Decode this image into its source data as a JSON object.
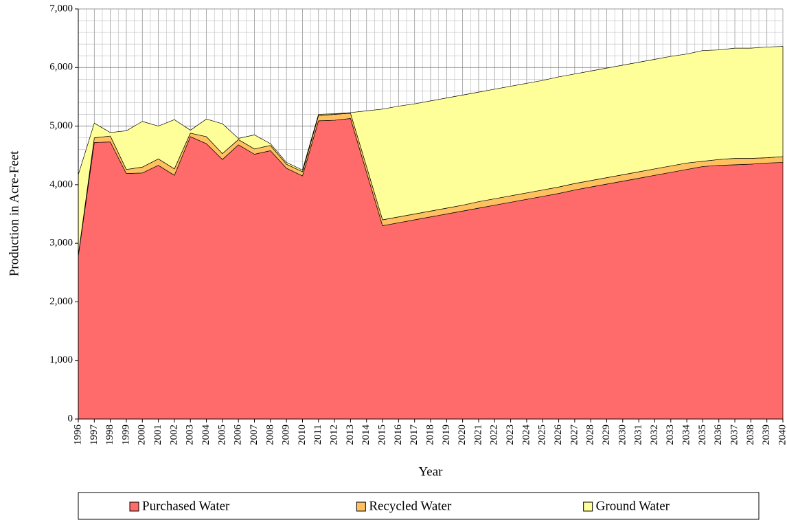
{
  "chart_data": {
    "type": "stacked_area",
    "x_label": "Year",
    "y_label": "Production in Acre-Feet",
    "categories": [
      "1996",
      "1997",
      "1998",
      "1999",
      "2000",
      "2001",
      "2002",
      "2003",
      "2004",
      "2005",
      "2006",
      "2007",
      "2008",
      "2009",
      "2010",
      "2011",
      "2012",
      "2013",
      "2014",
      "2015",
      "2016",
      "2017",
      "2018",
      "2019",
      "2020",
      "2021",
      "2022",
      "2023",
      "2024",
      "2025",
      "2026",
      "2027",
      "2028",
      "2029",
      "2030",
      "2031",
      "2032",
      "2033",
      "2034",
      "2035",
      "2036",
      "2037",
      "2038",
      "2039",
      "2040"
    ],
    "series": [
      {
        "name": "Purchased Water",
        "color": "#ff6b6b",
        "values": [
          2780,
          4720,
          4730,
          4190,
          4200,
          4330,
          4160,
          4820,
          4700,
          4430,
          4680,
          4520,
          4580,
          4280,
          4150,
          5090,
          5100,
          5130,
          4210,
          3300,
          3350,
          3400,
          3450,
          3500,
          3550,
          3600,
          3650,
          3700,
          3750,
          3800,
          3850,
          3910,
          3960,
          4010,
          4060,
          4110,
          4160,
          4210,
          4260,
          4310,
          4330,
          4340,
          4350,
          4370,
          4380
        ]
      },
      {
        "name": "Recycled Water",
        "color": "#ffc060",
        "values": [
          20,
          80,
          100,
          70,
          100,
          110,
          110,
          60,
          120,
          100,
          90,
          90,
          90,
          70,
          70,
          90,
          100,
          90,
          100,
          100,
          100,
          100,
          100,
          100,
          100,
          110,
          110,
          110,
          110,
          110,
          110,
          110,
          110,
          110,
          110,
          110,
          110,
          110,
          110,
          90,
          100,
          110,
          100,
          90,
          100
        ]
      },
      {
        "name": "Ground Water",
        "color": "#ffff99",
        "values": [
          1370,
          250,
          60,
          660,
          780,
          560,
          840,
          50,
          300,
          510,
          20,
          240,
          30,
          30,
          30,
          20,
          10,
          10,
          950,
          1890,
          1890,
          1880,
          1880,
          1880,
          1880,
          1870,
          1870,
          1870,
          1870,
          1870,
          1880,
          1870,
          1870,
          1870,
          1870,
          1870,
          1870,
          1870,
          1860,
          1890,
          1870,
          1880,
          1880,
          1890,
          1880
        ]
      }
    ],
    "ylim": [
      0,
      7000
    ],
    "yticks": [
      0,
      {
        "value": 1000,
        "label": "1,000"
      },
      {
        "value": 2000,
        "label": "2,000"
      },
      {
        "value": 3000,
        "label": "3,000"
      },
      {
        "value": 4000,
        "label": "4,000"
      },
      {
        "value": 5000,
        "label": "5,000"
      },
      {
        "value": 6000,
        "label": "6,000"
      },
      {
        "value": 7000,
        "label": "7,000"
      }
    ],
    "grid": true,
    "legend": "bottom"
  }
}
